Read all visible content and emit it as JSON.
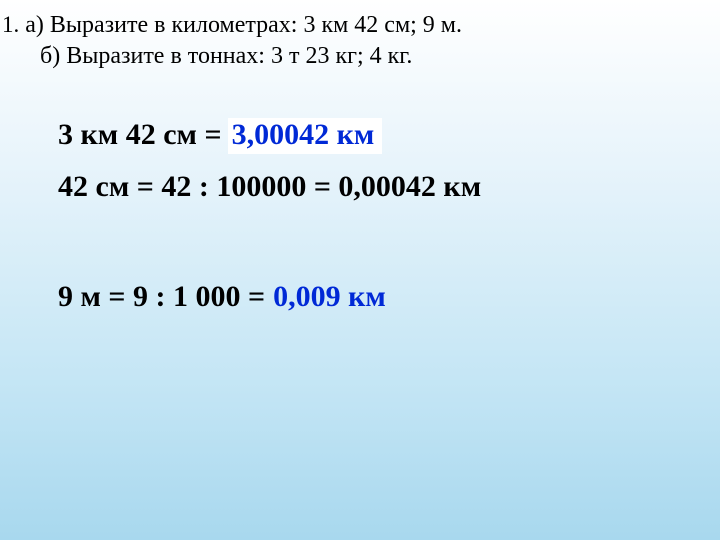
{
  "header": {
    "list_number": "1.",
    "line_a": "а)  Выразите в километрах:  3 км 42 см; 9 м.",
    "line_b": "б)  Выразите в тоннах:  3 т  23 кг;   4 кг."
  },
  "solutions": {
    "row1": {
      "prefix": "3 км 42 см = ",
      "answer": "3,00042 км"
    },
    "row2": {
      "text": "42 см = 42 : 100000 = 0,00042 км"
    },
    "row3": {
      "prefix": "9 м = 9 : 1 000 =",
      "answer": "0,009 км"
    }
  },
  "colors": {
    "background_top": "#ffffff",
    "background_bottom": "#a8d8ee",
    "text_black": "#000000",
    "text_blue": "#0029d6",
    "highlight_bg": "#ffffff"
  },
  "typography": {
    "header_fontsize_pt": 18,
    "body_fontsize_pt": 22,
    "font_family": "Georgia, serif",
    "body_weight": "bold"
  }
}
